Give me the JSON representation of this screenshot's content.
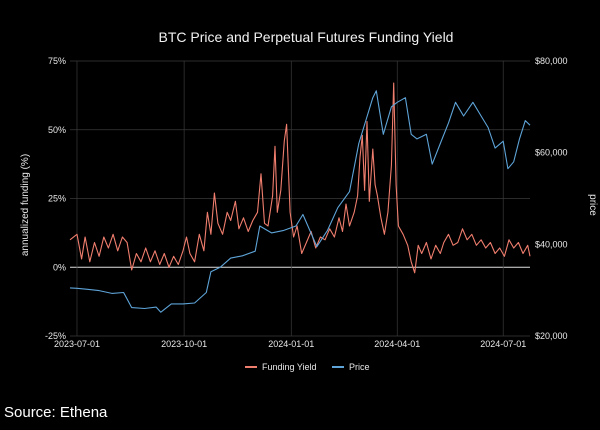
{
  "chart_data": {
    "type": "line",
    "title": "BTC Price and Perpetual Futures Funding Yield",
    "xlabel": "",
    "ylabel": "annualized funding (%)",
    "y2label": "price",
    "x_range": [
      "2023-06-25",
      "2024-07-24"
    ],
    "xticks": [
      {
        "date": "2023-07-01",
        "label": "2023-07-01"
      },
      {
        "date": "2023-10-01",
        "label": "2023-10-01"
      },
      {
        "date": "2024-01-01",
        "label": "2024-01-01"
      },
      {
        "date": "2024-04-01",
        "label": "2024-04-01"
      },
      {
        "date": "2024-07-01",
        "label": "2024-07-01"
      }
    ],
    "ylim": [
      -25,
      75
    ],
    "yticks": [
      {
        "value": -25,
        "label": "-25%"
      },
      {
        "value": 0,
        "label": "0%"
      },
      {
        "value": 25,
        "label": "25%"
      },
      {
        "value": 50,
        "label": "50%"
      },
      {
        "value": 75,
        "label": "75%"
      }
    ],
    "y2lim": [
      20000,
      80000
    ],
    "y2ticks": [
      {
        "value": 20000,
        "label": "$20,000"
      },
      {
        "value": 40000,
        "label": "$40,000"
      },
      {
        "value": 60000,
        "label": "$60,000"
      },
      {
        "value": 80000,
        "label": "$80,000"
      }
    ],
    "legend_position": "bottom-center",
    "grid": true,
    "series": [
      {
        "name": "Funding Yield",
        "axis": "left",
        "color": "#f07e6e",
        "points": [
          [
            "2023-06-25",
            10
          ],
          [
            "2023-07-01",
            12
          ],
          [
            "2023-07-05",
            3
          ],
          [
            "2023-07-08",
            11
          ],
          [
            "2023-07-12",
            2
          ],
          [
            "2023-07-16",
            9
          ],
          [
            "2023-07-20",
            4
          ],
          [
            "2023-07-24",
            11
          ],
          [
            "2023-07-28",
            7
          ],
          [
            "2023-08-01",
            12
          ],
          [
            "2023-08-05",
            6
          ],
          [
            "2023-08-09",
            11
          ],
          [
            "2023-08-13",
            9
          ],
          [
            "2023-08-17",
            -1
          ],
          [
            "2023-08-21",
            5
          ],
          [
            "2023-08-25",
            2
          ],
          [
            "2023-08-29",
            7
          ],
          [
            "2023-09-02",
            2
          ],
          [
            "2023-09-06",
            6
          ],
          [
            "2023-09-10",
            1
          ],
          [
            "2023-09-14",
            5
          ],
          [
            "2023-09-18",
            0
          ],
          [
            "2023-09-22",
            4
          ],
          [
            "2023-09-26",
            1
          ],
          [
            "2023-09-30",
            6
          ],
          [
            "2023-10-03",
            11
          ],
          [
            "2023-10-06",
            5
          ],
          [
            "2023-10-10",
            2
          ],
          [
            "2023-10-14",
            12
          ],
          [
            "2023-10-18",
            6
          ],
          [
            "2023-10-21",
            20
          ],
          [
            "2023-10-24",
            12
          ],
          [
            "2023-10-27",
            27
          ],
          [
            "2023-10-30",
            16
          ],
          [
            "2023-11-03",
            12
          ],
          [
            "2023-11-07",
            20
          ],
          [
            "2023-11-10",
            17
          ],
          [
            "2023-11-14",
            24
          ],
          [
            "2023-11-17",
            14
          ],
          [
            "2023-11-21",
            18
          ],
          [
            "2023-11-25",
            13
          ],
          [
            "2023-11-29",
            17
          ],
          [
            "2023-12-03",
            20
          ],
          [
            "2023-12-06",
            34
          ],
          [
            "2023-12-09",
            16
          ],
          [
            "2023-12-12",
            15
          ],
          [
            "2023-12-16",
            26
          ],
          [
            "2023-12-18",
            44
          ],
          [
            "2023-12-20",
            20
          ],
          [
            "2023-12-23",
            28
          ],
          [
            "2023-12-26",
            46
          ],
          [
            "2023-12-28",
            52
          ],
          [
            "2023-12-31",
            20
          ],
          [
            "2024-01-03",
            11
          ],
          [
            "2024-01-06",
            15
          ],
          [
            "2024-01-10",
            5
          ],
          [
            "2024-01-14",
            9
          ],
          [
            "2024-01-18",
            13
          ],
          [
            "2024-01-22",
            7
          ],
          [
            "2024-01-26",
            11
          ],
          [
            "2024-01-30",
            10
          ],
          [
            "2024-02-03",
            14
          ],
          [
            "2024-02-07",
            11
          ],
          [
            "2024-02-11",
            18
          ],
          [
            "2024-02-14",
            13
          ],
          [
            "2024-02-17",
            23
          ],
          [
            "2024-02-20",
            15
          ],
          [
            "2024-02-24",
            20
          ],
          [
            "2024-02-27",
            26
          ],
          [
            "2024-02-29",
            40
          ],
          [
            "2024-03-02",
            48
          ],
          [
            "2024-03-04",
            28
          ],
          [
            "2024-03-06",
            53
          ],
          [
            "2024-03-08",
            24
          ],
          [
            "2024-03-11",
            43
          ],
          [
            "2024-03-13",
            30
          ],
          [
            "2024-03-15",
            26
          ],
          [
            "2024-03-18",
            18
          ],
          [
            "2024-03-21",
            12
          ],
          [
            "2024-03-24",
            20
          ],
          [
            "2024-03-27",
            37
          ],
          [
            "2024-03-29",
            67
          ],
          [
            "2024-03-31",
            30
          ],
          [
            "2024-04-02",
            15
          ],
          [
            "2024-04-06",
            12
          ],
          [
            "2024-04-10",
            8
          ],
          [
            "2024-04-13",
            2
          ],
          [
            "2024-04-16",
            -2
          ],
          [
            "2024-04-19",
            8
          ],
          [
            "2024-04-22",
            5
          ],
          [
            "2024-04-26",
            9
          ],
          [
            "2024-04-30",
            3
          ],
          [
            "2024-05-04",
            8
          ],
          [
            "2024-05-08",
            5
          ],
          [
            "2024-05-11",
            9
          ],
          [
            "2024-05-15",
            12
          ],
          [
            "2024-05-19",
            8
          ],
          [
            "2024-05-23",
            9
          ],
          [
            "2024-05-27",
            14
          ],
          [
            "2024-05-31",
            10
          ],
          [
            "2024-06-04",
            12
          ],
          [
            "2024-06-08",
            8
          ],
          [
            "2024-06-12",
            10
          ],
          [
            "2024-06-16",
            7
          ],
          [
            "2024-06-20",
            9
          ],
          [
            "2024-06-24",
            5
          ],
          [
            "2024-06-28",
            7
          ],
          [
            "2024-07-02",
            4
          ],
          [
            "2024-07-06",
            10
          ],
          [
            "2024-07-10",
            7
          ],
          [
            "2024-07-14",
            9
          ],
          [
            "2024-07-18",
            5
          ],
          [
            "2024-07-22",
            8
          ],
          [
            "2024-07-24",
            4
          ]
        ]
      },
      {
        "name": "Price",
        "axis": "right",
        "color": "#5ea4d8",
        "points": [
          [
            "2023-06-25",
            30500
          ],
          [
            "2023-07-01",
            30400
          ],
          [
            "2023-07-10",
            30200
          ],
          [
            "2023-07-20",
            29900
          ],
          [
            "2023-07-31",
            29300
          ],
          [
            "2023-08-10",
            29500
          ],
          [
            "2023-08-17",
            26200
          ],
          [
            "2023-08-28",
            26000
          ],
          [
            "2023-09-07",
            26300
          ],
          [
            "2023-09-11",
            25200
          ],
          [
            "2023-09-20",
            27000
          ],
          [
            "2023-09-30",
            27000
          ],
          [
            "2023-10-10",
            27200
          ],
          [
            "2023-10-20",
            29500
          ],
          [
            "2023-10-24",
            34000
          ],
          [
            "2023-11-01",
            35000
          ],
          [
            "2023-11-10",
            37000
          ],
          [
            "2023-11-20",
            37500
          ],
          [
            "2023-12-01",
            38500
          ],
          [
            "2023-12-05",
            44000
          ],
          [
            "2023-12-15",
            42500
          ],
          [
            "2023-12-25",
            43000
          ],
          [
            "2024-01-05",
            44000
          ],
          [
            "2024-01-11",
            46500
          ],
          [
            "2024-01-23",
            39500
          ],
          [
            "2024-02-01",
            43000
          ],
          [
            "2024-02-10",
            48000
          ],
          [
            "2024-02-20",
            51500
          ],
          [
            "2024-02-28",
            62000
          ],
          [
            "2024-03-05",
            67000
          ],
          [
            "2024-03-11",
            72000
          ],
          [
            "2024-03-14",
            73500
          ],
          [
            "2024-03-20",
            64000
          ],
          [
            "2024-03-27",
            70000
          ],
          [
            "2024-04-01",
            71000
          ],
          [
            "2024-04-08",
            72000
          ],
          [
            "2024-04-13",
            64000
          ],
          [
            "2024-04-18",
            63000
          ],
          [
            "2024-04-26",
            64000
          ],
          [
            "2024-05-01",
            57500
          ],
          [
            "2024-05-08",
            62000
          ],
          [
            "2024-05-15",
            66500
          ],
          [
            "2024-05-21",
            71000
          ],
          [
            "2024-05-28",
            68000
          ],
          [
            "2024-06-05",
            71000
          ],
          [
            "2024-06-12",
            68000
          ],
          [
            "2024-06-18",
            65500
          ],
          [
            "2024-06-24",
            61000
          ],
          [
            "2024-07-01",
            62500
          ],
          [
            "2024-07-05",
            56500
          ],
          [
            "2024-07-10",
            58000
          ],
          [
            "2024-07-15",
            63000
          ],
          [
            "2024-07-20",
            67000
          ],
          [
            "2024-07-24",
            66000
          ]
        ]
      }
    ]
  },
  "source_caption": "Source: Ethena"
}
